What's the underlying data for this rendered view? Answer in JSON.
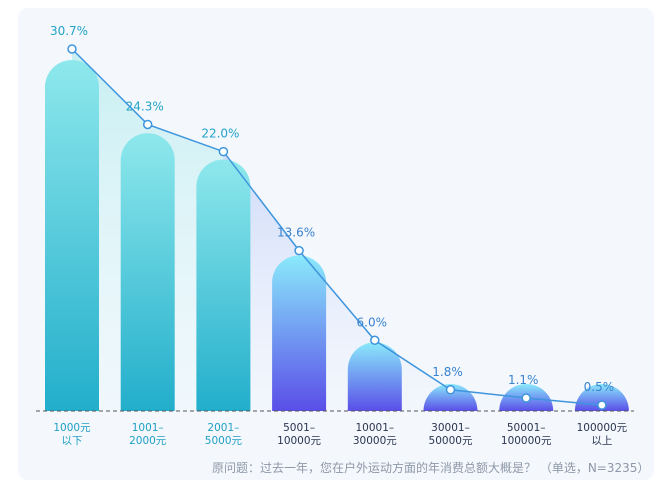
{
  "chart_data": {
    "type": "bar",
    "categories": [
      [
        "1000元",
        "以下"
      ],
      [
        "1001–",
        "2000元"
      ],
      [
        "2001–",
        "5000元"
      ],
      [
        "5001–",
        "10000元"
      ],
      [
        "10001–",
        "30000元"
      ],
      [
        "30001–",
        "50000元"
      ],
      [
        "50001–",
        "100000元"
      ],
      [
        "100000元",
        "以上"
      ]
    ],
    "values": [
      30.7,
      24.3,
      22.0,
      13.6,
      6.0,
      1.8,
      1.1,
      0.5
    ],
    "value_labels": [
      "30.7%",
      "24.3%",
      "22.0%",
      "13.6%",
      "6.0%",
      "1.8%",
      "1.1%",
      "0.5%"
    ],
    "ylim": [
      0,
      30.7
    ],
    "line_overlay": true,
    "colors": {
      "teal_top": "#8ee8ec",
      "teal_bottom": "#22aecb",
      "blue_top": "#8ae9fb",
      "blue_bottom": "#5a4ee8",
      "line": "#3e95dd",
      "value_label": "#23a3c7",
      "value_label_blue": "#3a82cf"
    }
  },
  "footnote": "原问题：过去一年，您在户外运动方面的年消费总额大概是？ （单选，N=3235）"
}
